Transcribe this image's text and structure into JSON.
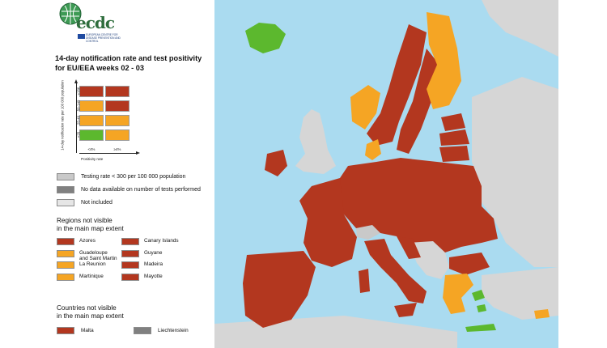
{
  "logo": {
    "word": "ecdc",
    "subtext": "EUROPEAN CENTRE FOR DISEASE PREVENTION AND CONTROL"
  },
  "colors": {
    "dark_red": "#a8321d",
    "red": "#b3371f",
    "orange": "#f5a524",
    "green": "#5cb82e",
    "grey": "#c9c9c9",
    "dark_grey": "#808080",
    "light_grey": "#e6e6e6",
    "sea": "#aadbf0",
    "non_eu_land": "#d6d6d6"
  },
  "legend": {
    "title_line1": "14-day notification rate and test positivity",
    "title_line2": "for EU/EEA weeks 02 - 03",
    "y_axis_label": "14-day notification rate per 100 000 population",
    "x_axis_label": "Positivity rate",
    "y_ticks": [
      "<25",
      "25-49",
      "50-149",
      "≥150"
    ],
    "x_ticks": [
      "<4%",
      "≥4%"
    ],
    "matrix": [
      [
        "red",
        "red"
      ],
      [
        "orange",
        "red"
      ],
      [
        "orange",
        "orange"
      ],
      [
        "green",
        "orange"
      ]
    ],
    "other": [
      {
        "label": "Testing rate < 300 per 100 000 population",
        "color": "#c9c9c9"
      },
      {
        "label": "No data available on number of tests performed",
        "color": "#808080"
      },
      {
        "label": "Not included",
        "color": "#e6e6e6"
      }
    ]
  },
  "regions": {
    "heading_line1": "Regions not visible",
    "heading_line2": "in the main map extent",
    "left": [
      {
        "label": "Azores",
        "color": "#b3371f"
      },
      {
        "label": "Guadeloupe\nand Saint Martin",
        "color": "#f5a524"
      },
      {
        "label": "La Reunion",
        "color": "#f5a524"
      },
      {
        "label": "Martinique",
        "color": "#f5a524"
      }
    ],
    "right": [
      {
        "label": "Canary Islands",
        "color": "#b3371f"
      },
      {
        "label": "Guyane",
        "color": "#b3371f"
      },
      {
        "label": "Madeira",
        "color": "#b3371f"
      },
      {
        "label": "Mayotte",
        "color": "#b3371f"
      }
    ]
  },
  "countries": {
    "heading_line1": "Countries not visible",
    "heading_line2": "in the main map extent",
    "items": [
      {
        "label": "Malta",
        "color": "#b3371f"
      },
      {
        "label": "Liechtenstein",
        "color": "#808080"
      }
    ]
  },
  "map_regions": [
    {
      "name": "Iceland",
      "status": "green"
    },
    {
      "name": "Norway",
      "status": "red"
    },
    {
      "name": "Sweden",
      "status": "red"
    },
    {
      "name": "Finland",
      "status": "orange"
    },
    {
      "name": "Estonia",
      "status": "red"
    },
    {
      "name": "Latvia",
      "status": "red"
    },
    {
      "name": "Lithuania",
      "status": "red"
    },
    {
      "name": "Denmark",
      "status": "orange"
    },
    {
      "name": "Ireland",
      "status": "red"
    },
    {
      "name": "Netherlands",
      "status": "red"
    },
    {
      "name": "Belgium",
      "status": "red"
    },
    {
      "name": "Luxembourg",
      "status": "red"
    },
    {
      "name": "Germany",
      "status": "red"
    },
    {
      "name": "Poland",
      "status": "red"
    },
    {
      "name": "Czechia",
      "status": "red"
    },
    {
      "name": "Slovakia",
      "status": "red"
    },
    {
      "name": "Hungary",
      "status": "red"
    },
    {
      "name": "Austria",
      "status": "red"
    },
    {
      "name": "France",
      "status": "red"
    },
    {
      "name": "Spain",
      "status": "red"
    },
    {
      "name": "Portugal",
      "status": "red"
    },
    {
      "name": "Italy",
      "status": "red"
    },
    {
      "name": "Slovenia",
      "status": "red"
    },
    {
      "name": "Croatia",
      "status": "red"
    },
    {
      "name": "Romania",
      "status": "red"
    },
    {
      "name": "Bulgaria",
      "status": "red"
    },
    {
      "name": "Greece",
      "status": "orange"
    },
    {
      "name": "Cyprus",
      "status": "green"
    }
  ]
}
